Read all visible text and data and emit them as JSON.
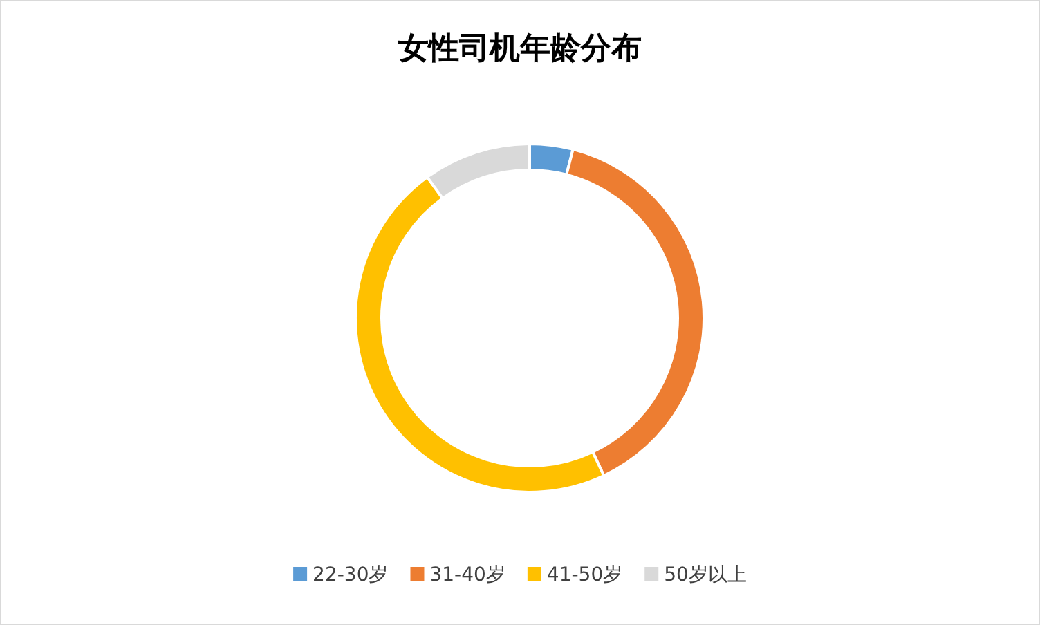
{
  "chart_data": {
    "type": "donut",
    "title": "女性司机年龄分布",
    "categories": [
      "22-30岁",
      "31-40岁",
      "41-50岁",
      "50岁以上"
    ],
    "values": [
      4,
      39,
      47,
      10
    ],
    "colors": [
      "#5b9bd5",
      "#ed7d31",
      "#ffc000",
      "#d9d9d9"
    ],
    "legend": "bottom"
  }
}
